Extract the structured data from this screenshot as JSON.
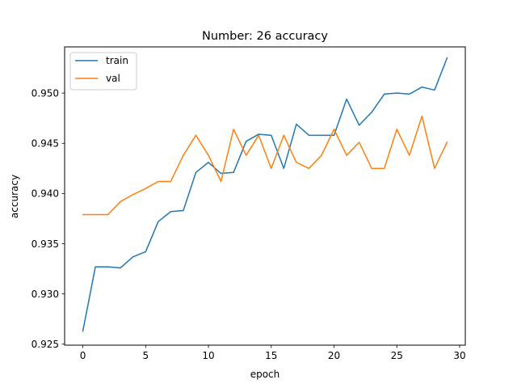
{
  "chart_data": {
    "type": "line",
    "title": "Number: 26 accuracy",
    "xlabel": "epoch",
    "ylabel": "accuracy",
    "xlim": [
      -1.45,
      30.45
    ],
    "ylim": [
      0.9249,
      0.9546
    ],
    "xticks": [
      0,
      5,
      10,
      15,
      20,
      25,
      30
    ],
    "yticks": [
      0.925,
      0.93,
      0.935,
      0.94,
      0.945,
      0.95
    ],
    "ytick_labels": [
      "0.925",
      "0.930",
      "0.935",
      "0.940",
      "0.945",
      "0.950"
    ],
    "grid": false,
    "legend_position": "top-left",
    "x": [
      0,
      1,
      2,
      3,
      4,
      5,
      6,
      7,
      8,
      9,
      10,
      11,
      12,
      13,
      14,
      15,
      16,
      17,
      18,
      19,
      20,
      21,
      22,
      23,
      24,
      25,
      26,
      27,
      28,
      29
    ],
    "series": [
      {
        "name": "train",
        "color": "#1f77b4",
        "values": [
          0.9263,
          0.9327,
          0.9327,
          0.9326,
          0.9337,
          0.9342,
          0.9372,
          0.9382,
          0.9383,
          0.9421,
          0.9431,
          0.942,
          0.9421,
          0.9452,
          0.9459,
          0.9458,
          0.9425,
          0.9469,
          0.9458,
          0.9458,
          0.9458,
          0.9494,
          0.9468,
          0.9481,
          0.9499,
          0.95,
          0.9499,
          0.9506,
          0.9503,
          0.9535
        ]
      },
      {
        "name": "val",
        "color": "#ff7f0e",
        "values": [
          0.9379,
          0.9379,
          0.9379,
          0.9392,
          0.9399,
          0.9405,
          0.9412,
          0.9412,
          0.9438,
          0.9458,
          0.9438,
          0.9412,
          0.9464,
          0.9438,
          0.9458,
          0.9425,
          0.9458,
          0.9431,
          0.9425,
          0.9438,
          0.9464,
          0.9438,
          0.9451,
          0.9425,
          0.9425,
          0.9464,
          0.9438,
          0.9477,
          0.9425,
          0.9451
        ]
      }
    ]
  }
}
